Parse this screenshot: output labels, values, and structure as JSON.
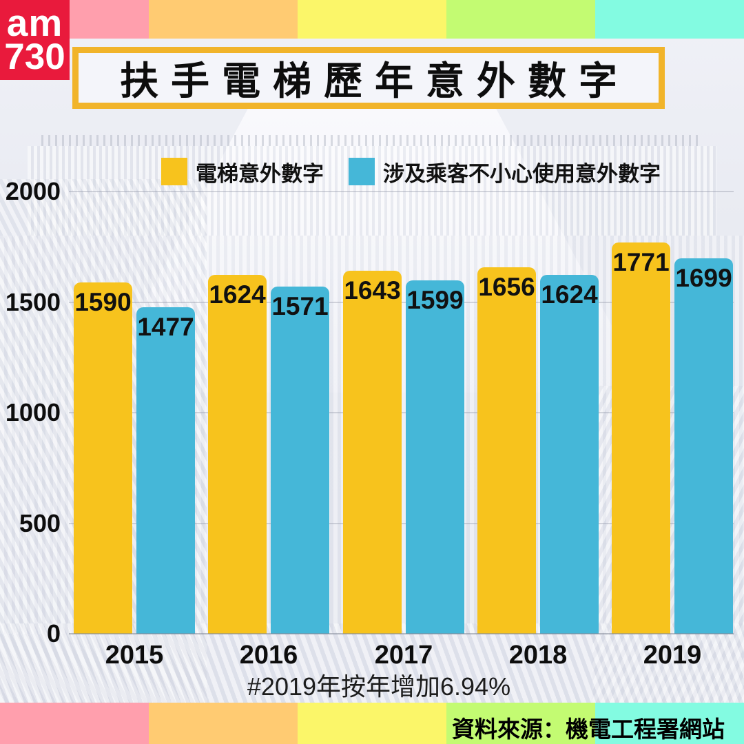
{
  "brand": {
    "logo_line1": "am",
    "logo_line2": "730"
  },
  "title": "扶手電梯歷年意外數字",
  "legend": [
    {
      "label": "電梯意外數字",
      "color": "#f7c31d"
    },
    {
      "label": "涉及乘客不小心使用意外數字",
      "color": "#45b7d8"
    }
  ],
  "footnote": "#2019年按年增加6.94%",
  "source": "資料來源：機電工程署網站",
  "colors": {
    "bar_yellow": "#f7c31d",
    "bar_blue": "#45b7d8",
    "title_border": "#f1b42a",
    "logo_red": "#e91a3c"
  },
  "stripe_colors": [
    "#ff9fad",
    "#ffcb72",
    "#fbf669",
    "#c3fb72",
    "#83fbe1"
  ],
  "chart_data": {
    "type": "bar",
    "categories": [
      "2015",
      "2016",
      "2017",
      "2018",
      "2019"
    ],
    "series": [
      {
        "name": "電梯意外數字",
        "color": "#f7c31d",
        "values": [
          1590,
          1624,
          1643,
          1656,
          1771
        ]
      },
      {
        "name": "涉及乘客不小心使用意外數字",
        "color": "#45b7d8",
        "values": [
          1477,
          1571,
          1599,
          1624,
          1699
        ]
      }
    ],
    "title": "扶手電梯歷年意外數字",
    "xlabel": "",
    "ylabel": "",
    "ylim": [
      0,
      2000
    ],
    "yticks": [
      0,
      500,
      1000,
      1500,
      2000
    ],
    "grid": true,
    "legend_position": "top",
    "annotation": "#2019年按年增加6.94%"
  }
}
